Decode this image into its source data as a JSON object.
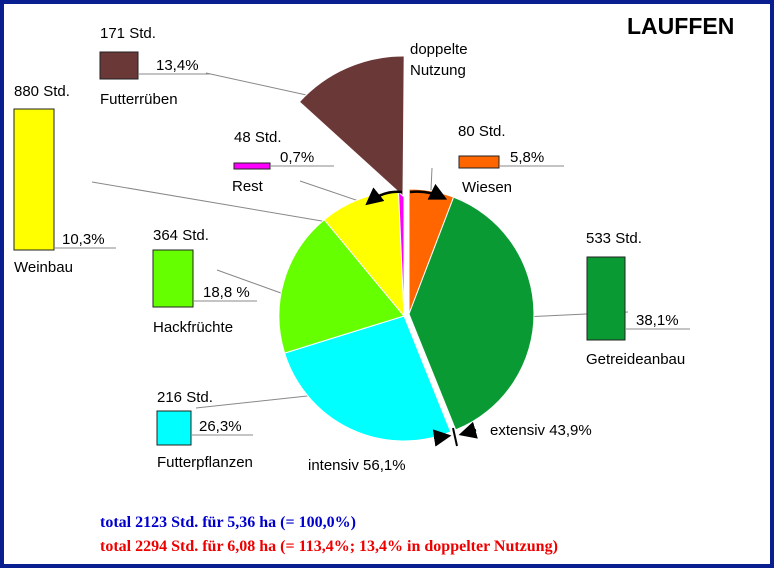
{
  "chart_data": {
    "type": "pie",
    "title": "LAUFFEN",
    "slices": [
      {
        "name": "Wiesen",
        "hours": "80 Std.",
        "percent": "5,8%",
        "value": 5.8,
        "color": "#ff6600"
      },
      {
        "name": "Getreideanbau",
        "hours": "533 Std.",
        "percent": "38,1%",
        "value": 38.1,
        "color": "#0a9a33"
      },
      {
        "name": "Futterpflanzen",
        "hours": "216 Std.",
        "percent": "26,3%",
        "value": 26.3,
        "color": "#00ffff"
      },
      {
        "name": "Hackfrüchte",
        "hours": "364 Std.",
        "percent": "18,8 %",
        "value": 18.8,
        "color": "#66ff00"
      },
      {
        "name": "Weinbau",
        "hours": "880 Std.",
        "percent": "10,3%",
        "value": 10.3,
        "color": "#ffff00"
      },
      {
        "name": "Rest",
        "hours": "48 Std.",
        "percent": "0,7%",
        "value": 0.7,
        "color": "#ff00ff"
      }
    ],
    "double_use": {
      "name": "Futterrüben",
      "hours": "171 Std.",
      "percent": "13,4%",
      "value": 13.4,
      "color": "#6b3838",
      "label_line1": "doppelte",
      "label_line2": "Nutzung"
    },
    "extensive_label": "extensiv 43,9%",
    "intensive_label": "intensiv 56,1%",
    "totals": [
      {
        "text": "total 2123 Std. für 5,36 ha (= 100,0%)",
        "color": "#0000cc"
      },
      {
        "text": "total 2294 Std. für 6,08 ha (= 113,4%; 13,4% in doppelter Nutzung)",
        "color": "#ee0000"
      }
    ]
  }
}
